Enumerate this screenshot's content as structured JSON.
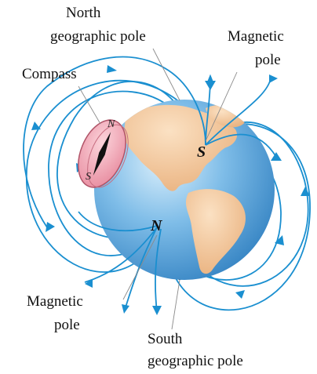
{
  "labels": {
    "north_geographic_1": "North",
    "north_geographic_2": "geographic pole",
    "magnetic_top_1": "Magnetic",
    "magnetic_top_2": "pole",
    "compass": "Compass",
    "magnetic_bottom_1": "Magnetic",
    "magnetic_bottom_2": "pole",
    "south_geographic_1": "South",
    "south_geographic_2": "geographic pole"
  },
  "poles": {
    "south_marker": "S",
    "north_marker": "N"
  },
  "compass_needle": {
    "north": "N",
    "south": "S"
  },
  "colors": {
    "field_lines": "#1a8fd0",
    "ocean": "#5fa9dc",
    "land": "#f2c69a",
    "compass_disc": "#f3a8b6",
    "axis": "#111111"
  }
}
